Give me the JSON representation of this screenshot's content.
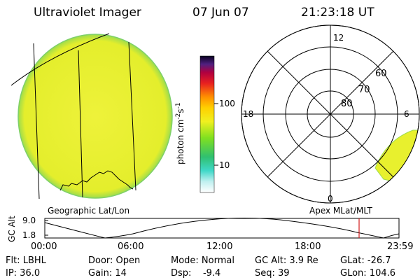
{
  "header": {
    "instrument": "Ultraviolet Imager",
    "date": "07 Jun 07",
    "time": "21:23:18 UT"
  },
  "left_panel": {
    "caption": "Geographic Lat/Lon"
  },
  "colorbar": {
    "unit": "photon cm",
    "unit_exp1": "-2",
    "unit_mid": "s",
    "unit_exp2": "-1",
    "ticks": [
      "100",
      "10"
    ]
  },
  "polar_panel": {
    "caption": "Apex MLat/MLT",
    "mlt_labels": {
      "top": "12",
      "left": "18",
      "right": "6",
      "bottom": "0"
    },
    "lat_labels": [
      "60",
      "70",
      "80"
    ]
  },
  "timeline": {
    "ylabel": "GC Alt",
    "y_ticks": [
      "9.0",
      "1.8"
    ],
    "x_ticks": [
      "00:00",
      "06:00",
      "12:00",
      "18:00",
      "23:59"
    ]
  },
  "info": {
    "row1": {
      "flt_label": "Flt: LBHL",
      "door_label": "Door: Open",
      "mode_label": "Mode: Normal",
      "alt_label": "GC Alt: 3.9 Re",
      "glat_label": "GLat: -26.7"
    },
    "row2": {
      "ip_label": "IP: 36.0",
      "gain_label": "Gain: 14",
      "dsp_label": "Dsp:    -9.4",
      "seq_label": "Seq: 39",
      "glon_label": "GLon: 104.6"
    }
  },
  "colors": {
    "disk_fill": "#e8f02e",
    "disk_edge": "#8ed84a",
    "ring": "#000000",
    "time_marker": "#d21b1b"
  }
}
